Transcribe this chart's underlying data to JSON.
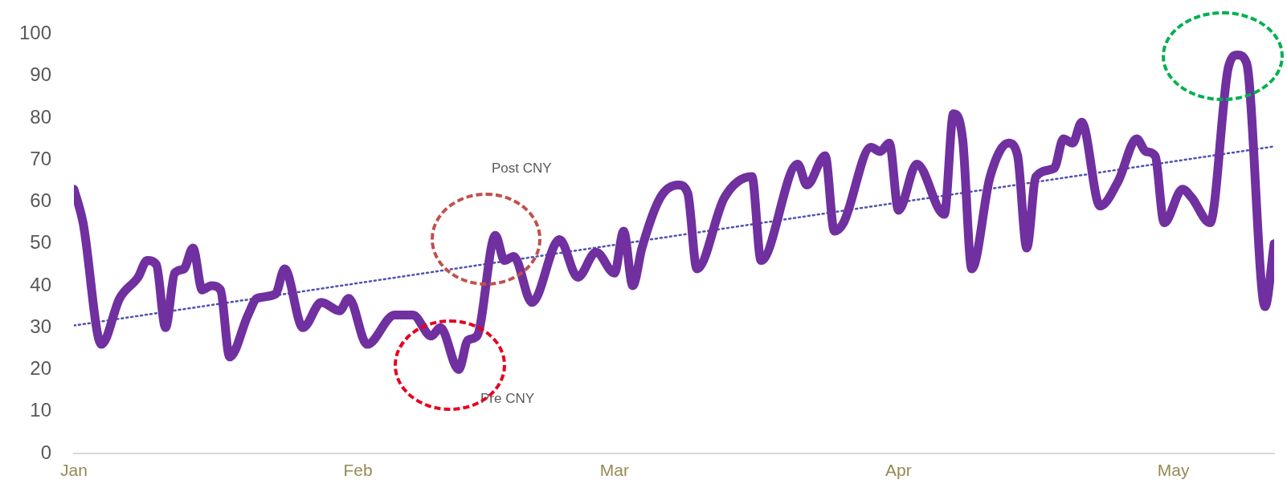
{
  "chart_data": {
    "type": "line",
    "xlim": [
      "--01-01",
      "--05-12"
    ],
    "xticks": [
      {
        "value": "--01-01",
        "label": "Jan"
      },
      {
        "value": "--02-01",
        "label": "Feb"
      },
      {
        "value": "--03-01",
        "label": "Mar"
      },
      {
        "value": "--04-01",
        "label": "Apr"
      },
      {
        "value": "--05-01",
        "label": "May"
      }
    ],
    "ylim": [
      0,
      100
    ],
    "yticks": [
      0,
      10,
      20,
      30,
      40,
      50,
      60,
      70,
      80,
      90,
      100
    ],
    "grid": false,
    "legend": false,
    "marker": "none",
    "annotations": [
      "Post CNY",
      "Pre CNY"
    ],
    "series": [
      {
        "color": "#7030a0",
        "line_style": "solid",
        "x": [
          "--01-01",
          "--01-02",
          "--01-04",
          "--01-06",
          "--01-08",
          "--01-09",
          "--01-10",
          "--01-11",
          "--01-12",
          "--01-13",
          "--01-14",
          "--01-15",
          "--01-16",
          "--01-17",
          "--01-18",
          "--01-20",
          "--01-21",
          "--01-23",
          "--01-24",
          "--01-26",
          "--01-28",
          "--01-30",
          "--01-31",
          "--02-02",
          "--02-05",
          "--02-07",
          "--02-09",
          "--02-10",
          "--02-12",
          "--02-13",
          "--02-14",
          "--02-16",
          "--02-17",
          "--02-18",
          "--02-20",
          "--02-23",
          "--02-25",
          "--02-27",
          "--03-01",
          "--03-02",
          "--03-03",
          "--03-04",
          "--03-06",
          "--03-08",
          "--03-09",
          "--03-10",
          "--03-13",
          "--03-16",
          "--03-17",
          "--03-21",
          "--03-22",
          "--03-24",
          "--03-25",
          "--03-26",
          "--03-29",
          "--03-30",
          "--03-31",
          "--04-01",
          "--04-03",
          "--04-06",
          "--04-07",
          "--04-08",
          "--04-09",
          "--04-11",
          "--04-13",
          "--04-14",
          "--04-15",
          "--04-16",
          "--04-18",
          "--04-19",
          "--04-20",
          "--04-21",
          "--04-23",
          "--04-25",
          "--04-27",
          "--04-28",
          "--04-29",
          "--04-30",
          "--05-02",
          "--05-03",
          "--05-05",
          "--05-07",
          "--05-08",
          "--05-09",
          "--05-11",
          "--05-12"
        ],
        "values": [
          63,
          55,
          26,
          37,
          42,
          46,
          45,
          30,
          43,
          44,
          49,
          39,
          40,
          39,
          23,
          33,
          37,
          38,
          44,
          30,
          36,
          34,
          37,
          26,
          33,
          33,
          28,
          30,
          20,
          27,
          28,
          52,
          46,
          47,
          36,
          51,
          42,
          48,
          43,
          53,
          40,
          49,
          61,
          64,
          62,
          44,
          61,
          66,
          46,
          69,
          64,
          71,
          53,
          55,
          73,
          72,
          74,
          58,
          69,
          57,
          81,
          75,
          44,
          66,
          74,
          71,
          49,
          66,
          68,
          75,
          74,
          79,
          59,
          65,
          75,
          72,
          71,
          55,
          63,
          61,
          55,
          92,
          95,
          93,
          35,
          50
        ]
      },
      {
        "type": "line",
        "color": "#4f52b2",
        "line_style": "dotted",
        "x": [
          "--01-01",
          "--05-12"
        ],
        "values": [
          30.5,
          73.2
        ]
      }
    ]
  }
}
